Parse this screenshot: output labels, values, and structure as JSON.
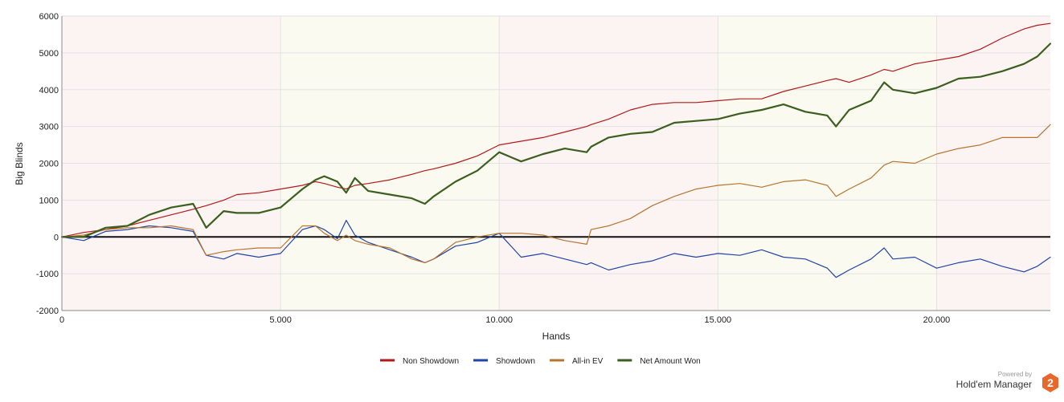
{
  "brand": {
    "powered": "Powered by",
    "name": "Hold'em Manager",
    "logo_digit": "2",
    "logo_color": "#e8672a"
  },
  "chart_data": {
    "type": "line",
    "xlabel": "Hands",
    "ylabel": "Big Blinds",
    "xlim": [
      0,
      22600
    ],
    "ylim": [
      -2000,
      6000
    ],
    "x_ticks": [
      0,
      5000,
      10000,
      15000,
      20000
    ],
    "x_tick_labels": [
      "0",
      "5.000",
      "10.000",
      "15.000",
      "20.000"
    ],
    "y_ticks": [
      -2000,
      -1000,
      0,
      1000,
      2000,
      3000,
      4000,
      5000,
      6000
    ],
    "y_tick_labels": [
      "-2000",
      "-1000",
      "0",
      "1000",
      "2000",
      "3000",
      "4000",
      "5000",
      "6000"
    ],
    "grid": true,
    "legend_position": "bottom-center",
    "background_bands": {
      "odd": "#fbf4f2",
      "even": "#fbfaf0"
    },
    "x": [
      0,
      500,
      1000,
      1500,
      2000,
      2500,
      3000,
      3300,
      3700,
      4000,
      4500,
      5000,
      5500,
      5800,
      6000,
      6300,
      6500,
      6700,
      7000,
      7500,
      8000,
      8300,
      8500,
      9000,
      9500,
      10000,
      10500,
      11000,
      11500,
      12000,
      12100,
      12500,
      13000,
      13500,
      14000,
      14500,
      15000,
      15500,
      16000,
      16500,
      17000,
      17500,
      17700,
      18000,
      18500,
      18800,
      19000,
      19500,
      20000,
      20500,
      21000,
      21500,
      22000,
      22300,
      22600
    ],
    "series": [
      {
        "name": "Non Showdown",
        "color": "#b21a1a",
        "width": 1.2,
        "values": [
          0,
          120,
          200,
          300,
          450,
          600,
          750,
          850,
          1000,
          1150,
          1200,
          1300,
          1400,
          1500,
          1450,
          1350,
          1300,
          1400,
          1450,
          1550,
          1700,
          1800,
          1850,
          2000,
          2200,
          2500,
          2600,
          2700,
          2850,
          3000,
          3050,
          3200,
          3450,
          3600,
          3650,
          3650,
          3700,
          3750,
          3750,
          3950,
          4100,
          4250,
          4300,
          4200,
          4400,
          4550,
          4500,
          4700,
          4800,
          4900,
          5100,
          5400,
          5650,
          5750,
          5800
        ]
      },
      {
        "name": "Showdown",
        "color": "#2144a8",
        "width": 1.2,
        "values": [
          0,
          -100,
          150,
          200,
          300,
          250,
          150,
          -500,
          -600,
          -450,
          -550,
          -450,
          200,
          300,
          200,
          -50,
          450,
          50,
          -150,
          -350,
          -550,
          -700,
          -600,
          -250,
          -150,
          100,
          -550,
          -450,
          -600,
          -750,
          -700,
          -900,
          -750,
          -650,
          -450,
          -550,
          -450,
          -500,
          -350,
          -550,
          -600,
          -850,
          -1100,
          -900,
          -600,
          -300,
          -600,
          -550,
          -850,
          -700,
          -600,
          -800,
          -950,
          -800,
          -550
        ]
      },
      {
        "name": "All-in EV",
        "color": "#b7752f",
        "width": 1.2,
        "values": [
          0,
          50,
          200,
          250,
          250,
          300,
          200,
          -500,
          -400,
          -350,
          -300,
          -300,
          300,
          300,
          100,
          -100,
          50,
          -100,
          -200,
          -300,
          -600,
          -700,
          -600,
          -150,
          0,
          100,
          100,
          50,
          -100,
          -200,
          200,
          300,
          500,
          850,
          1100,
          1300,
          1400,
          1450,
          1350,
          1500,
          1550,
          1400,
          1100,
          1300,
          1600,
          1950,
          2050,
          2000,
          2250,
          2400,
          2500,
          2700,
          2700,
          2700,
          3050
        ]
      },
      {
        "name": "Net Amount Won",
        "color": "#3b5f1f",
        "width": 2.2,
        "values": [
          0,
          0,
          250,
          300,
          600,
          800,
          900,
          250,
          700,
          650,
          650,
          800,
          1300,
          1550,
          1650,
          1500,
          1200,
          1600,
          1250,
          1150,
          1050,
          900,
          1100,
          1500,
          1800,
          2300,
          2050,
          2250,
          2400,
          2300,
          2450,
          2700,
          2800,
          2850,
          3100,
          3150,
          3200,
          3350,
          3450,
          3600,
          3400,
          3300,
          3000,
          3450,
          3700,
          4200,
          4000,
          3900,
          4050,
          4300,
          4350,
          4500,
          4700,
          4900,
          5250
        ]
      }
    ]
  }
}
